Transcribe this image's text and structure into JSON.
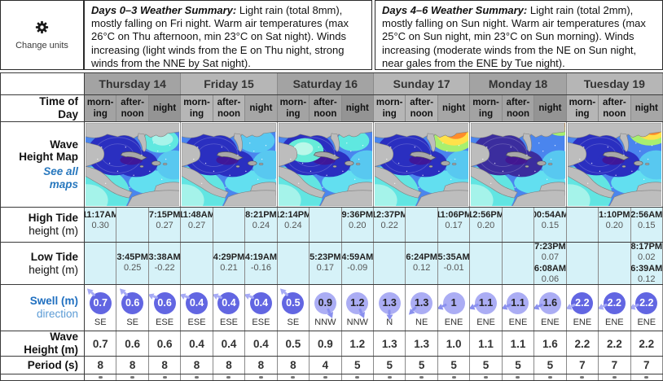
{
  "change_units": {
    "label": "Change units",
    "icon": "gear-icon"
  },
  "summaries": [
    {
      "lead": "Days 0–3 Weather Summary:",
      "text": " Light rain (total 8mm), mostly falling on Fri night. Warm air temperatures (max 26°C on Thu afternoon, min 23°C on Sat night). Winds increasing (light winds from the E on Thu night, strong winds from the NNE by Sat night)."
    },
    {
      "lead": "Days 4–6 Weather Summary:",
      "text": " Light rain (total 2mm), mostly falling on Sun night. Warm air temperatures (max 25°C on Sun night, min 23°C on Sun morning). Winds increasing (moderate winds from the NE on Sun night, near gales from the ENE by Tue night)."
    }
  ],
  "days": [
    {
      "label": "Thursday 14",
      "shade": "dark",
      "key": "thu"
    },
    {
      "label": "Friday 15",
      "shade": "light",
      "key": "fri"
    },
    {
      "label": "Saturday 16",
      "shade": "dark",
      "key": "sat"
    },
    {
      "label": "Sunday 17",
      "shade": "light",
      "key": "sun"
    },
    {
      "label": "Monday 18",
      "shade": "dark",
      "key": "mon"
    },
    {
      "label": "Tuesday 19",
      "shade": "light",
      "key": "tue"
    }
  ],
  "time_of_day": {
    "label_lines": [
      {
        "text": "Time of",
        "bold": true
      },
      {
        "text": "Day",
        "bold": true
      }
    ],
    "periods": [
      {
        "l1": "morn-",
        "l2": "ing",
        "key": "morning"
      },
      {
        "l1": "after-",
        "l2": "noon",
        "key": "afternoon"
      },
      {
        "l1": "night",
        "l2": "",
        "key": "night"
      }
    ]
  },
  "map_row": {
    "label_lines": [
      {
        "text": "Wave",
        "bold": true
      },
      {
        "text": "Height Map",
        "bold": true
      }
    ],
    "link_lines": [
      "See all",
      "maps"
    ]
  },
  "high_tide": {
    "label_lines": [
      {
        "text": "High Tide",
        "bold": true
      },
      {
        "text": "height (m)"
      }
    ],
    "cells": [
      [
        {
          "time": "11:17AM",
          "height": "0.30"
        }
      ],
      [],
      [
        {
          "time": "7:15PM",
          "height": "0.27"
        }
      ],
      [
        {
          "time": "11:48AM",
          "height": "0.27"
        }
      ],
      [],
      [
        {
          "time": "8:21PM",
          "height": "0.24"
        }
      ],
      [
        {
          "time": "12:14PM",
          "height": "0.24"
        }
      ],
      [],
      [
        {
          "time": "9:36PM",
          "height": "0.20"
        }
      ],
      [
        {
          "time": "12:37PM",
          "height": "0.22"
        }
      ],
      [],
      [
        {
          "time": "11:06PM",
          "height": "0.17"
        }
      ],
      [
        {
          "time": "12:56PM",
          "height": "0.20"
        }
      ],
      [],
      [
        {
          "time": "00:54AM",
          "height": "0.15"
        }
      ],
      [],
      [
        {
          "time": "1:10PM",
          "height": "0.20"
        }
      ],
      [
        {
          "time": "2:56AM",
          "height": "0.15"
        }
      ]
    ]
  },
  "low_tide": {
    "label_lines": [
      {
        "text": "Low Tide",
        "bold": true
      },
      {
        "text": "height (m)"
      }
    ],
    "cells": [
      [],
      [
        {
          "time": "3:45PM",
          "height": "0.25"
        }
      ],
      [
        {
          "time": "3:38AM",
          "height": "-0.22"
        }
      ],
      [],
      [
        {
          "time": "4:29PM",
          "height": "0.21"
        }
      ],
      [
        {
          "time": "4:19AM",
          "height": "-0.16"
        }
      ],
      [],
      [
        {
          "time": "5:23PM",
          "height": "0.17"
        }
      ],
      [
        {
          "time": "4:59AM",
          "height": "-0.09"
        }
      ],
      [],
      [
        {
          "time": "6:24PM",
          "height": "0.12"
        }
      ],
      [
        {
          "time": "5:35AM",
          "height": "-0.01"
        }
      ],
      [],
      [],
      [
        {
          "time": "7:23PM",
          "height": "0.07"
        },
        {
          "time": "6:08AM",
          "height": "0.06"
        }
      ],
      [],
      [],
      [
        {
          "time": "8:17PM",
          "height": "0.02"
        },
        {
          "time": "6:39AM",
          "height": "0.12"
        }
      ]
    ]
  },
  "swell": {
    "label_lines": [
      {
        "text": "Swell (m)",
        "bold": true,
        "link": true
      },
      {
        "text": "direction",
        "link": true
      }
    ],
    "cells": [
      {
        "value": "0.7",
        "dir": "SE",
        "shade": "dark"
      },
      {
        "value": "0.6",
        "dir": "SE",
        "shade": "dark"
      },
      {
        "value": "0.6",
        "dir": "ESE",
        "shade": "dark"
      },
      {
        "value": "0.4",
        "dir": "ESE",
        "shade": "dark"
      },
      {
        "value": "0.4",
        "dir": "ESE",
        "shade": "dark"
      },
      {
        "value": "0.4",
        "dir": "ESE",
        "shade": "dark"
      },
      {
        "value": "0.5",
        "dir": "SE",
        "shade": "dark"
      },
      {
        "value": "0.9",
        "dir": "NNW",
        "shade": "light"
      },
      {
        "value": "1.2",
        "dir": "NNW",
        "shade": "light"
      },
      {
        "value": "1.3",
        "dir": "N",
        "shade": "light"
      },
      {
        "value": "1.3",
        "dir": "NE",
        "shade": "light"
      },
      {
        "value": "1",
        "dir": "ENE",
        "shade": "light"
      },
      {
        "value": "1.1",
        "dir": "ENE",
        "shade": "light"
      },
      {
        "value": "1.1",
        "dir": "ENE",
        "shade": "light"
      },
      {
        "value": "1.6",
        "dir": "ENE",
        "shade": "light"
      },
      {
        "value": "2.2",
        "dir": "ENE",
        "shade": "dark"
      },
      {
        "value": "2.2",
        "dir": "ENE",
        "shade": "dark"
      },
      {
        "value": "2.2",
        "dir": "ENE",
        "shade": "dark"
      }
    ]
  },
  "wave_height": {
    "label_lines": [
      {
        "text": "Wave",
        "bold": true
      },
      {
        "text": "Height (m)",
        "bold": true
      }
    ],
    "values": [
      "0.7",
      "0.6",
      "0.6",
      "0.4",
      "0.4",
      "0.4",
      "0.5",
      "0.9",
      "1.2",
      "1.3",
      "1.3",
      "1.0",
      "1.1",
      "1.1",
      "1.6",
      "2.2",
      "2.2",
      "2.2"
    ]
  },
  "period": {
    "label_lines": [
      {
        "text": "Period (s)",
        "bold": true
      }
    ],
    "values": [
      "8",
      "8",
      "8",
      "8",
      "8",
      "8",
      "8",
      "4",
      "5",
      "5",
      "5",
      "5",
      "5",
      "5",
      "5",
      "7",
      "7",
      "7"
    ]
  },
  "colors": {
    "tide_bg": "#d6f2f8",
    "swell_dark": "#6266e2",
    "swell_light": "#abadf4",
    "day_dark": "#a3a3a3",
    "day_light": "#b6b6b6",
    "link_blue": "#2878be"
  }
}
